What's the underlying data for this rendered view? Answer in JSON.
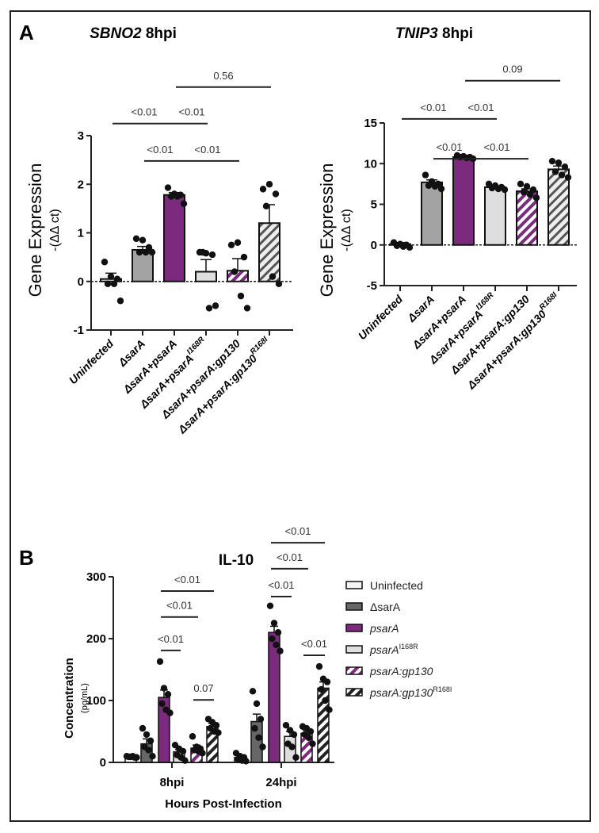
{
  "panel_labels": [
    "A",
    "B"
  ],
  "colors": {
    "purple": "#7b2a7e",
    "grey": "#a3a3a3",
    "dark_grey": "#676767",
    "light_grey": "#dedede",
    "white": "#f4f4f4"
  },
  "chart_data": [
    {
      "type": "bar",
      "title_italic": "SBNO2",
      "title_rest": " 8hpi",
      "ylabel": "Gene Expression",
      "ylabel2": "-(ΔΔ ct)",
      "ylim": [
        -1,
        3
      ],
      "yticks": [
        "-1",
        "0",
        "1",
        "2",
        "3"
      ],
      "categories": [
        {
          "label": "Uninfected",
          "sup": ""
        },
        {
          "label": "ΔsarA",
          "sup": ""
        },
        {
          "label": "ΔsarA+psarA",
          "sup": ""
        },
        {
          "label": "ΔsarA+psarA",
          "sup": "I168R"
        },
        {
          "label": "ΔsarA+psarA:gp130",
          "sup": ""
        },
        {
          "label": "ΔsarA+psarA:gp130",
          "sup": "R168I"
        }
      ],
      "values": [
        0.05,
        0.65,
        1.78,
        0.2,
        0.22,
        1.2
      ],
      "errors": [
        0.12,
        0.07,
        0.05,
        0.25,
        0.25,
        0.38
      ],
      "points": [
        [
          0.4,
          0.1,
          0.05,
          -0.05,
          -0.05,
          -0.4
        ],
        [
          0.88,
          0.85,
          0.7,
          0.6,
          0.6,
          0.6
        ],
        [
          1.93,
          1.8,
          1.78,
          1.75,
          1.75,
          1.6
        ],
        [
          0.6,
          0.58,
          0.55,
          0.6,
          -0.55,
          -0.5
        ],
        [
          0.75,
          0.8,
          0.5,
          0.2,
          -0.3,
          -0.55
        ],
        [
          1.9,
          2.0,
          1.8,
          1.55,
          0.1,
          -0.05
        ]
      ],
      "significance": [
        {
          "from": 0,
          "to": 2,
          "y": 3.25,
          "label": "<0.01"
        },
        {
          "from": 2,
          "to": 3,
          "y": 3.25,
          "label": "<0.01"
        },
        {
          "from": 1,
          "to": 2,
          "y": 2.48,
          "label": "<0.01"
        },
        {
          "from": 2,
          "to": 4,
          "y": 2.48,
          "label": "<0.01"
        },
        {
          "from": 2,
          "to": 5,
          "y": 4.0,
          "label": "0.56"
        }
      ]
    },
    {
      "type": "bar",
      "title_italic": "TNIP3",
      "title_rest": " 8hpi",
      "ylabel": "Gene Expression",
      "ylabel2": "-(ΔΔ ct)",
      "ylim": [
        -5,
        15
      ],
      "yticks": [
        "-5",
        "0",
        "5",
        "10",
        "15"
      ],
      "categories": [
        {
          "label": "Uninfected",
          "sup": ""
        },
        {
          "label": "ΔsarA",
          "sup": ""
        },
        {
          "label": "ΔsarA+psarA",
          "sup": ""
        },
        {
          "label": "ΔsarA+psarA",
          "sup": "I168R"
        },
        {
          "label": "ΔsarA+psarA:gp130",
          "sup": ""
        },
        {
          "label": "ΔsarA+psarA:gp130",
          "sup": "R168I"
        }
      ],
      "values": [
        0.1,
        7.7,
        10.8,
        7.1,
        6.6,
        9.3
      ],
      "errors": [
        0.2,
        0.3,
        0.1,
        0.15,
        0.3,
        0.4
      ],
      "points": [
        [
          0.3,
          0.1,
          0,
          -0.1,
          -0.2,
          -0.3
        ],
        [
          8.6,
          7.8,
          7.5,
          7.3,
          7.2,
          6.9
        ],
        [
          11,
          10.9,
          10.8,
          10.8,
          10.7,
          10.6
        ],
        [
          7.5,
          7.3,
          7.1,
          7,
          6.9,
          6.8
        ],
        [
          7.5,
          7.2,
          6.8,
          6.5,
          6.2,
          5.8
        ],
        [
          10.3,
          10.1,
          9.6,
          9.0,
          8.6,
          8.3
        ]
      ],
      "significance": [
        {
          "from": 0,
          "to": 2,
          "y": 15.5,
          "label": "<0.01"
        },
        {
          "from": 2,
          "to": 3,
          "y": 15.5,
          "label": "<0.01"
        },
        {
          "from": 1,
          "to": 2,
          "y": 10.6,
          "label": "<0.01"
        },
        {
          "from": 2,
          "to": 4,
          "y": 10.6,
          "label": "<0.01"
        },
        {
          "from": 2,
          "to": 5,
          "y": 20.2,
          "label": "0.09"
        }
      ]
    },
    {
      "type": "bar",
      "title": "IL-10",
      "xlabel": "Hours Post-Infection",
      "ylabel": "Concentration",
      "ylabel2": "(pg/mL)",
      "ylim": [
        0,
        300
      ],
      "yticks": [
        "0",
        "100",
        "200",
        "300"
      ],
      "categories": [
        "8hpi",
        "24hpi"
      ],
      "legend_position": "right",
      "series": [
        {
          "name": "Uninfected",
          "sup": "",
          "italic": false,
          "values": [
            9,
            8
          ],
          "errors": [
            2,
            3
          ],
          "points": [
            [
              10,
              9,
              8,
              9,
              10,
              8
            ],
            [
              15,
              10,
              8,
              5,
              3,
              2
            ]
          ]
        },
        {
          "name": "ΔsarA",
          "sup": "",
          "italic": false,
          "values": [
            30,
            66
          ],
          "errors": [
            8,
            12
          ],
          "points": [
            [
              55,
              45,
              35,
              25,
              20,
              10
            ],
            [
              115,
              95,
              70,
              55,
              40,
              25
            ]
          ]
        },
        {
          "name": "psarA",
          "sup": "",
          "italic": true,
          "values": [
            105,
            210
          ],
          "errors": [
            12,
            10
          ],
          "points": [
            [
              163,
              120,
              110,
              95,
              85,
              80
            ],
            [
              253,
              225,
              210,
              200,
              190,
              180
            ]
          ]
        },
        {
          "name": "psarA",
          "sup": "I168R",
          "italic": true,
          "values": [
            17,
            42
          ],
          "errors": [
            4,
            8
          ],
          "points": [
            [
              28,
              22,
              18,
              12,
              8,
              3
            ],
            [
              60,
              52,
              45,
              30,
              25,
              8
            ]
          ]
        },
        {
          "name": "psarA:gp130",
          "sup": "",
          "italic": true,
          "values": [
            23,
            47
          ],
          "errors": [
            5,
            5
          ],
          "points": [
            [
              42,
              25,
              22,
              20,
              18,
              15
            ],
            [
              58,
              55,
              50,
              45,
              40,
              30
            ]
          ]
        },
        {
          "name": "psarA:gp130",
          "sup": "R168I",
          "italic": true,
          "values": [
            58,
            120
          ],
          "errors": [
            5,
            10
          ],
          "points": [
            [
              70,
              65,
              60,
              55,
              50,
              48
            ],
            [
              155,
              135,
              130,
              118,
              100,
              85
            ]
          ]
        }
      ],
      "significance": [
        {
          "group": 0,
          "from": 2,
          "to": 3,
          "y": 181,
          "label": "<0.01"
        },
        {
          "group": 0,
          "from": 2,
          "to": 4,
          "y": 235,
          "label": "<0.01"
        },
        {
          "group": 0,
          "from": 2,
          "to": 5,
          "y": 277,
          "label": "<0.01"
        },
        {
          "group": 0,
          "from": 4,
          "to": 5,
          "y": 101,
          "label": "0.07"
        },
        {
          "group": 1,
          "from": 2,
          "to": 3,
          "y": 268,
          "label": "<0.01"
        },
        {
          "group": 1,
          "from": 2,
          "to": 4,
          "y": 313,
          "label": "<0.01"
        },
        {
          "group": 1,
          "from": 2,
          "to": 5,
          "y": 355,
          "label": "<0.01"
        },
        {
          "group": 1,
          "from": 4,
          "to": 5,
          "y": 173,
          "label": "<0.01"
        }
      ]
    }
  ]
}
